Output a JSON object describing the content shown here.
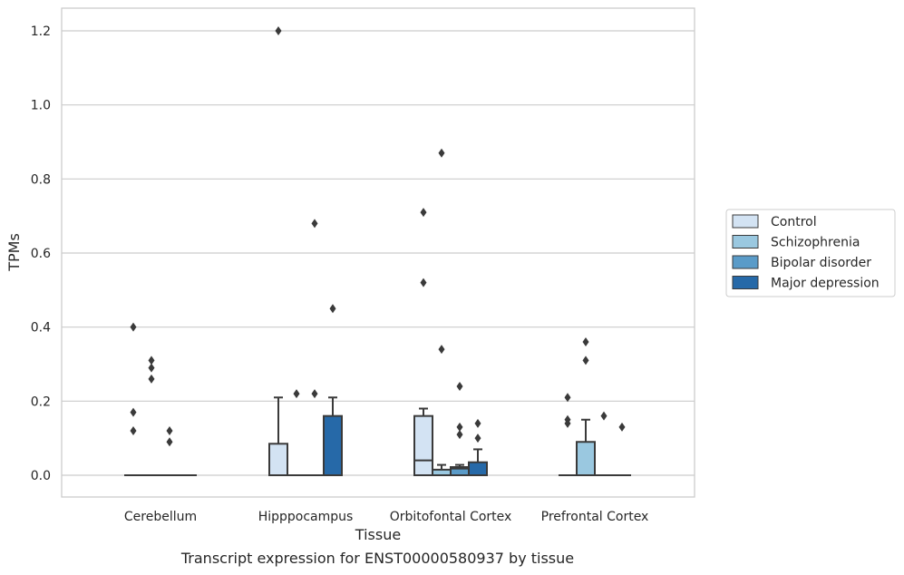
{
  "caption": "Transcript expression for ENST00000580937 by tissue",
  "chart_data": {
    "type": "box",
    "xlabel": "Tissue",
    "ylabel": "TPMs",
    "ylim": [
      -0.06,
      1.26
    ],
    "yticks": [
      0.0,
      0.2,
      0.4,
      0.6,
      0.8,
      1.0,
      1.2
    ],
    "ytick_labels": [
      "0.0",
      "0.2",
      "0.4",
      "0.6",
      "0.8",
      "1.0",
      "1.2"
    ],
    "grid": "horizontal",
    "legend_position": "right",
    "categories": [
      "Cerebellum",
      "Hipppocampus",
      "Orbitofontal Cortex",
      "Prefrontal Cortex"
    ],
    "series": [
      {
        "name": "Control",
        "color": "#d3e3f3",
        "boxes": [
          {
            "q1": 0,
            "median": 0,
            "q3": 0,
            "whisker_low": 0,
            "whisker_high": 0,
            "outliers": [
              0.4,
              0.17,
              0.12
            ]
          },
          {
            "q1": 0,
            "median": 0,
            "q3": 0.085,
            "whisker_low": 0,
            "whisker_high": 0.21,
            "outliers": [
              1.2
            ]
          },
          {
            "q1": 0,
            "median": 0.04,
            "q3": 0.16,
            "whisker_low": 0,
            "whisker_high": 0.18,
            "outliers": [
              0.71,
              0.52
            ]
          },
          {
            "q1": 0,
            "median": 0,
            "q3": 0,
            "whisker_low": 0,
            "whisker_high": 0,
            "outliers": [
              0.21,
              0.15,
              0.14
            ]
          }
        ]
      },
      {
        "name": "Schizophrenia",
        "color": "#9ac8e0",
        "boxes": [
          {
            "q1": 0,
            "median": 0,
            "q3": 0,
            "whisker_low": 0,
            "whisker_high": 0,
            "outliers": [
              0.31,
              0.29,
              0.26
            ]
          },
          {
            "q1": 0,
            "median": 0,
            "q3": 0,
            "whisker_low": 0,
            "whisker_high": 0,
            "outliers": [
              0.22
            ]
          },
          {
            "q1": 0,
            "median": 0,
            "q3": 0.015,
            "whisker_low": 0,
            "whisker_high": 0.028,
            "outliers": [
              0.87,
              0.34
            ]
          },
          {
            "q1": 0,
            "median": 0,
            "q3": 0.09,
            "whisker_low": 0,
            "whisker_high": 0.15,
            "outliers": [
              0.36,
              0.31
            ]
          }
        ]
      },
      {
        "name": "Bipolar disorder",
        "color": "#5a9bc8",
        "boxes": [
          {
            "q1": 0,
            "median": 0,
            "q3": 0,
            "whisker_low": 0,
            "whisker_high": 0,
            "outliers": [
              0.12,
              0.09
            ]
          },
          {
            "q1": 0,
            "median": 0,
            "q3": 0,
            "whisker_low": 0,
            "whisker_high": 0,
            "outliers": [
              0.68,
              0.22
            ]
          },
          {
            "q1": 0,
            "median": 0.018,
            "q3": 0.022,
            "whisker_low": 0,
            "whisker_high": 0.028,
            "outliers": [
              0.24,
              0.13,
              0.11
            ]
          },
          {
            "q1": 0,
            "median": 0,
            "q3": 0,
            "whisker_low": 0,
            "whisker_high": 0,
            "outliers": [
              0.16
            ]
          }
        ]
      },
      {
        "name": "Major depression",
        "color": "#2669a8",
        "boxes": [
          {
            "q1": 0,
            "median": 0,
            "q3": 0,
            "whisker_low": 0,
            "whisker_high": 0,
            "outliers": []
          },
          {
            "q1": 0,
            "median": 0,
            "q3": 0.16,
            "whisker_low": 0,
            "whisker_high": 0.21,
            "outliers": [
              0.45
            ]
          },
          {
            "q1": 0,
            "median": 0,
            "q3": 0.035,
            "whisker_low": 0,
            "whisker_high": 0.07,
            "outliers": [
              0.14,
              0.1
            ]
          },
          {
            "q1": 0,
            "median": 0,
            "q3": 0,
            "whisker_low": 0,
            "whisker_high": 0,
            "outliers": [
              0.13
            ]
          }
        ]
      }
    ]
  }
}
